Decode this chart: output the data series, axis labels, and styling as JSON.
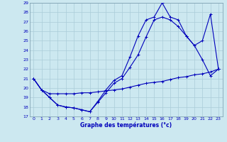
{
  "xlabel": "Graphe des températures (°c)",
  "xlim": [
    -0.5,
    23.5
  ],
  "ylim": [
    17,
    29
  ],
  "yticks": [
    17,
    18,
    19,
    20,
    21,
    22,
    23,
    24,
    25,
    26,
    27,
    28,
    29
  ],
  "xticks": [
    0,
    1,
    2,
    3,
    4,
    5,
    6,
    7,
    8,
    9,
    10,
    11,
    12,
    13,
    14,
    15,
    16,
    17,
    18,
    19,
    20,
    21,
    22,
    23
  ],
  "background_color": "#cce8f0",
  "grid_color": "#aaccd8",
  "line_color": "#0000bb",
  "line1_x": [
    0,
    1,
    2,
    3,
    4,
    5,
    6,
    7,
    8,
    9,
    10,
    11,
    12,
    13,
    14,
    15,
    16,
    17,
    18,
    19,
    20,
    21,
    22,
    23
  ],
  "line1_y": [
    21.0,
    19.8,
    19.0,
    18.2,
    18.0,
    17.9,
    17.7,
    17.5,
    18.5,
    19.5,
    20.5,
    21.0,
    22.2,
    23.5,
    25.4,
    27.2,
    27.5,
    27.2,
    26.5,
    25.5,
    24.5,
    23.0,
    21.3,
    22.0
  ],
  "line2_x": [
    0,
    1,
    2,
    3,
    4,
    5,
    6,
    7,
    8,
    9,
    10,
    11,
    12,
    13,
    14,
    15,
    16,
    17,
    18,
    19,
    20,
    21,
    22,
    23
  ],
  "line2_y": [
    21.0,
    19.8,
    19.0,
    18.2,
    18.0,
    17.9,
    17.7,
    17.5,
    18.6,
    19.8,
    20.8,
    21.3,
    23.3,
    25.5,
    27.2,
    27.5,
    29.0,
    27.5,
    27.2,
    25.5,
    24.5,
    25.0,
    27.8,
    22.0
  ],
  "line3_x": [
    0,
    1,
    2,
    3,
    4,
    5,
    6,
    7,
    8,
    9,
    10,
    11,
    12,
    13,
    14,
    15,
    16,
    17,
    18,
    19,
    20,
    21,
    22,
    23
  ],
  "line3_y": [
    21.0,
    19.8,
    19.4,
    19.4,
    19.4,
    19.4,
    19.5,
    19.5,
    19.6,
    19.7,
    19.8,
    19.9,
    20.1,
    20.3,
    20.5,
    20.6,
    20.7,
    20.9,
    21.1,
    21.2,
    21.4,
    21.5,
    21.7,
    22.0
  ]
}
